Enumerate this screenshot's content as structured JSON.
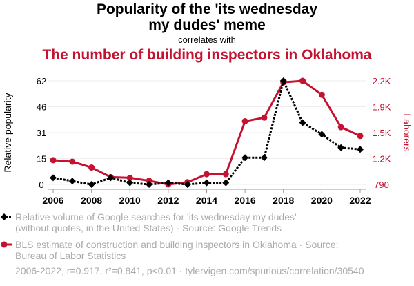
{
  "title_line1": "Popularity of the 'its wednesday",
  "title_line2": "my dudes' meme",
  "correlates": "correlates with",
  "title2": "The number of building inspectors in Oklahoma",
  "legend": [
    {
      "text_line1": "Relative volume of Google searches for 'its wednesday my dudes'",
      "text_line2": "(without quotes, in the United States) · Source: Google Trends"
    },
    {
      "text_line1": "BLS estimate of construction and building inspectors in Oklahoma · Source:",
      "text_line2": "Bureau of Labor Statistics"
    }
  ],
  "footer": "2006-2022, r=0.917, r²=0.841, p<0.01 · tylervigen.com/spurious/correlation/30540",
  "colors": {
    "series1": "#000000",
    "series2": "#c41230"
  },
  "chart_data": {
    "type": "line",
    "x": [
      2006,
      2007,
      2008,
      2009,
      2010,
      2011,
      2012,
      2013,
      2014,
      2015,
      2016,
      2017,
      2018,
      2019,
      2020,
      2021,
      2022
    ],
    "x_ticks": [
      "2006",
      "2008",
      "2010",
      "2012",
      "2014",
      "2016",
      "2018",
      "2020",
      "2022"
    ],
    "ylabel_left": "Relative popularity",
    "ylabel_right": "Laborers",
    "y_left_ticks": [
      "0",
      "15",
      "31",
      "46",
      "62"
    ],
    "y_left_range": [
      0,
      62
    ],
    "y_right_ticks": [
      "790",
      "1.2K",
      "1.5K",
      "1.9K",
      "2.2K"
    ],
    "y_right_range": [
      790,
      2200
    ],
    "grid": true,
    "series": [
      {
        "name": "Relative volume of Google searches for 'its wednesday my dudes'",
        "axis": "left",
        "style": "dotted",
        "values": [
          4,
          2,
          0,
          4,
          1,
          0,
          1,
          0,
          1,
          1,
          16,
          16,
          62,
          37,
          30,
          22,
          21
        ]
      },
      {
        "name": "BLS estimate of construction and building inspectors in Oklahoma",
        "axis": "right",
        "style": "solid",
        "values": [
          1120,
          1100,
          1020,
          890,
          880,
          840,
          790,
          820,
          930,
          930,
          1650,
          1700,
          2180,
          2200,
          2010,
          1570,
          1450
        ]
      }
    ]
  }
}
